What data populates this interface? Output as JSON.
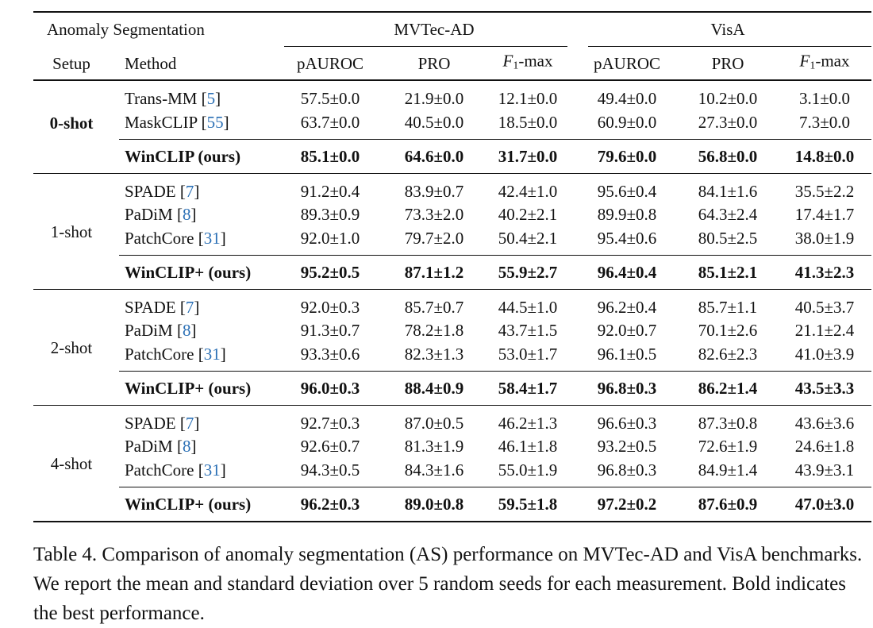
{
  "header": {
    "task": "Anomaly Segmentation",
    "setup": "Setup",
    "method": "Method",
    "datasets": [
      "MVTec-AD",
      "VisA"
    ],
    "metrics": [
      {
        "main": "pAUROC",
        "sub": "",
        "rest": ""
      },
      {
        "main": "PRO",
        "sub": "",
        "rest": ""
      },
      {
        "main": "F",
        "sub": "1",
        "rest": "-max"
      },
      {
        "main": "pAUROC",
        "sub": "",
        "rest": ""
      },
      {
        "main": "PRO",
        "sub": "",
        "rest": ""
      },
      {
        "main": "F",
        "sub": "1",
        "rest": "-max"
      }
    ]
  },
  "groups": [
    {
      "setup": "0-shot",
      "setup_bold": true,
      "rows": [
        {
          "name": "Trans-MM",
          "cite": "5",
          "values": [
            "57.5±0.0",
            "21.9±0.0",
            "12.1±0.0",
            "49.4±0.0",
            "10.2±0.0",
            "3.1±0.0"
          ]
        },
        {
          "name": "MaskCLIP",
          "cite": "55",
          "values": [
            "63.7±0.0",
            "40.5±0.0",
            "18.5±0.0",
            "60.9±0.0",
            "27.3±0.0",
            "7.3±0.0"
          ]
        }
      ],
      "ours": {
        "name": "WinCLIP (ours)",
        "values": [
          "85.1±0.0",
          "64.6±0.0",
          "31.7±0.0",
          "79.6±0.0",
          "56.8±0.0",
          "14.8±0.0"
        ]
      }
    },
    {
      "setup": "1-shot",
      "setup_bold": false,
      "rows": [
        {
          "name": "SPADE",
          "cite": "7",
          "values": [
            "91.2±0.4",
            "83.9±0.7",
            "42.4±1.0",
            "95.6±0.4",
            "84.1±1.6",
            "35.5±2.2"
          ]
        },
        {
          "name": "PaDiM",
          "cite": "8",
          "values": [
            "89.3±0.9",
            "73.3±2.0",
            "40.2±2.1",
            "89.9±0.8",
            "64.3±2.4",
            "17.4±1.7"
          ]
        },
        {
          "name": "PatchCore",
          "cite": "31",
          "values": [
            "92.0±1.0",
            "79.7±2.0",
            "50.4±2.1",
            "95.4±0.6",
            "80.5±2.5",
            "38.0±1.9"
          ]
        }
      ],
      "ours": {
        "name": "WinCLIP+ (ours)",
        "values": [
          "95.2±0.5",
          "87.1±1.2",
          "55.9±2.7",
          "96.4±0.4",
          "85.1±2.1",
          "41.3±2.3"
        ]
      }
    },
    {
      "setup": "2-shot",
      "setup_bold": false,
      "rows": [
        {
          "name": "SPADE",
          "cite": "7",
          "values": [
            "92.0±0.3",
            "85.7±0.7",
            "44.5±1.0",
            "96.2±0.4",
            "85.7±1.1",
            "40.5±3.7"
          ]
        },
        {
          "name": "PaDiM",
          "cite": "8",
          "values": [
            "91.3±0.7",
            "78.2±1.8",
            "43.7±1.5",
            "92.0±0.7",
            "70.1±2.6",
            "21.1±2.4"
          ]
        },
        {
          "name": "PatchCore",
          "cite": "31",
          "values": [
            "93.3±0.6",
            "82.3±1.3",
            "53.0±1.7",
            "96.1±0.5",
            "82.6±2.3",
            "41.0±3.9"
          ]
        }
      ],
      "ours": {
        "name": "WinCLIP+ (ours)",
        "values": [
          "96.0±0.3",
          "88.4±0.9",
          "58.4±1.7",
          "96.8±0.3",
          "86.2±1.4",
          "43.5±3.3"
        ]
      }
    },
    {
      "setup": "4-shot",
      "setup_bold": false,
      "rows": [
        {
          "name": "SPADE",
          "cite": "7",
          "values": [
            "92.7±0.3",
            "87.0±0.5",
            "46.2±1.3",
            "96.6±0.3",
            "87.3±0.8",
            "43.6±3.6"
          ]
        },
        {
          "name": "PaDiM",
          "cite": "8",
          "values": [
            "92.6±0.7",
            "81.3±1.9",
            "46.1±1.8",
            "93.2±0.5",
            "72.6±1.9",
            "24.6±1.8"
          ]
        },
        {
          "name": "PatchCore",
          "cite": "31",
          "values": [
            "94.3±0.5",
            "84.3±1.6",
            "55.0±1.9",
            "96.8±0.3",
            "84.9±1.4",
            "43.9±3.1"
          ]
        }
      ],
      "ours": {
        "name": "WinCLIP+ (ours)",
        "values": [
          "96.2±0.3",
          "89.0±0.8",
          "59.5±1.8",
          "97.2±0.2",
          "87.6±0.9",
          "47.0±3.0"
        ]
      }
    }
  ],
  "caption": "Table 4. Comparison of anomaly segmentation (AS) performance on MVTec-AD and VisA benchmarks. We report the mean and standard deviation over 5 random seeds for each measurement. Bold indicates the best performance."
}
